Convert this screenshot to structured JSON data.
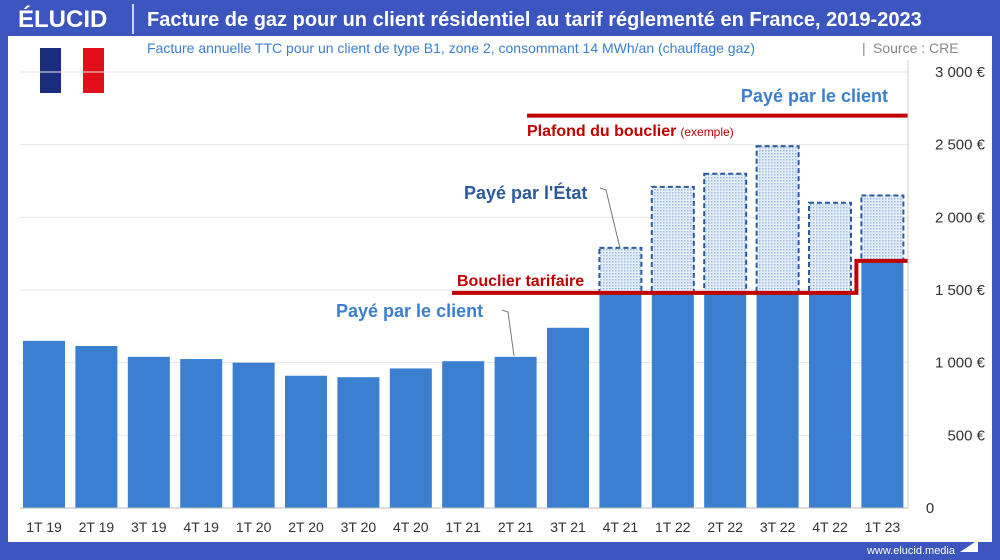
{
  "header": {
    "logo": "ÉLUCID",
    "title": "Facture de gaz pour un client résidentiel au tarif réglementé en France, 2019-2023",
    "subtitle": "Facture annuelle TTC pour un client de type B1, zone 2, consommant 14 MWh/an (chauffage gaz)",
    "source": "Source : CRE"
  },
  "footer": {
    "url": "www.elucid.media"
  },
  "colors": {
    "frame": "#3c55bf",
    "client": "#3a7fd0",
    "state_border": "#2c5a9c",
    "state_fill": "#c9dcf2",
    "shield": "#c00000",
    "annot_blue": "#2c5a9c"
  },
  "chart_data": {
    "type": "bar",
    "stacked": true,
    "title": "Facture de gaz pour un client résidentiel au tarif réglementé en France, 2019-2023",
    "categories": [
      "1T 19",
      "2T 19",
      "3T 19",
      "4T 19",
      "1T 20",
      "2T 20",
      "3T 20",
      "4T 20",
      "1T 21",
      "2T 21",
      "3T 21",
      "4T 21",
      "1T 22",
      "2T 22",
      "3T 22",
      "4T 22",
      "1T 23"
    ],
    "series": [
      {
        "name": "Payé par le client",
        "values": [
          1150,
          1115,
          1040,
          1025,
          1000,
          910,
          900,
          960,
          1010,
          1040,
          1240,
          1480,
          1480,
          1480,
          1480,
          1480,
          1700
        ]
      },
      {
        "name": "Payé par l'État",
        "values": [
          0,
          0,
          0,
          0,
          0,
          0,
          0,
          0,
          0,
          0,
          0,
          310,
          730,
          820,
          1010,
          620,
          450
        ]
      }
    ],
    "totals": [
      1150,
      1115,
      1040,
      1025,
      1000,
      910,
      900,
      960,
      1010,
      1040,
      1240,
      1790,
      2210,
      2300,
      2490,
      2100,
      2150
    ],
    "shield": {
      "label": "Bouclier tarifaire",
      "from_index": 11,
      "values": [
        1480,
        1480,
        1480,
        1480,
        1480,
        1700
      ]
    },
    "ceiling": {
      "label": "Plafond du bouclier",
      "note": "(exemple)",
      "value": 2700
    },
    "annotations": {
      "client_top": "Payé par le client",
      "state": "Payé par l'État",
      "client_mid": "Payé par le client"
    },
    "ylim": [
      0,
      3000
    ],
    "yticks": [
      0,
      500,
      1000,
      1500,
      2000,
      2500,
      3000
    ],
    "ytick_labels": [
      "0",
      "500 €",
      "1 000 €",
      "1 500 €",
      "2 000 €",
      "2 500 €",
      "3 000 €"
    ],
    "axis_side": "right",
    "grid": true
  }
}
